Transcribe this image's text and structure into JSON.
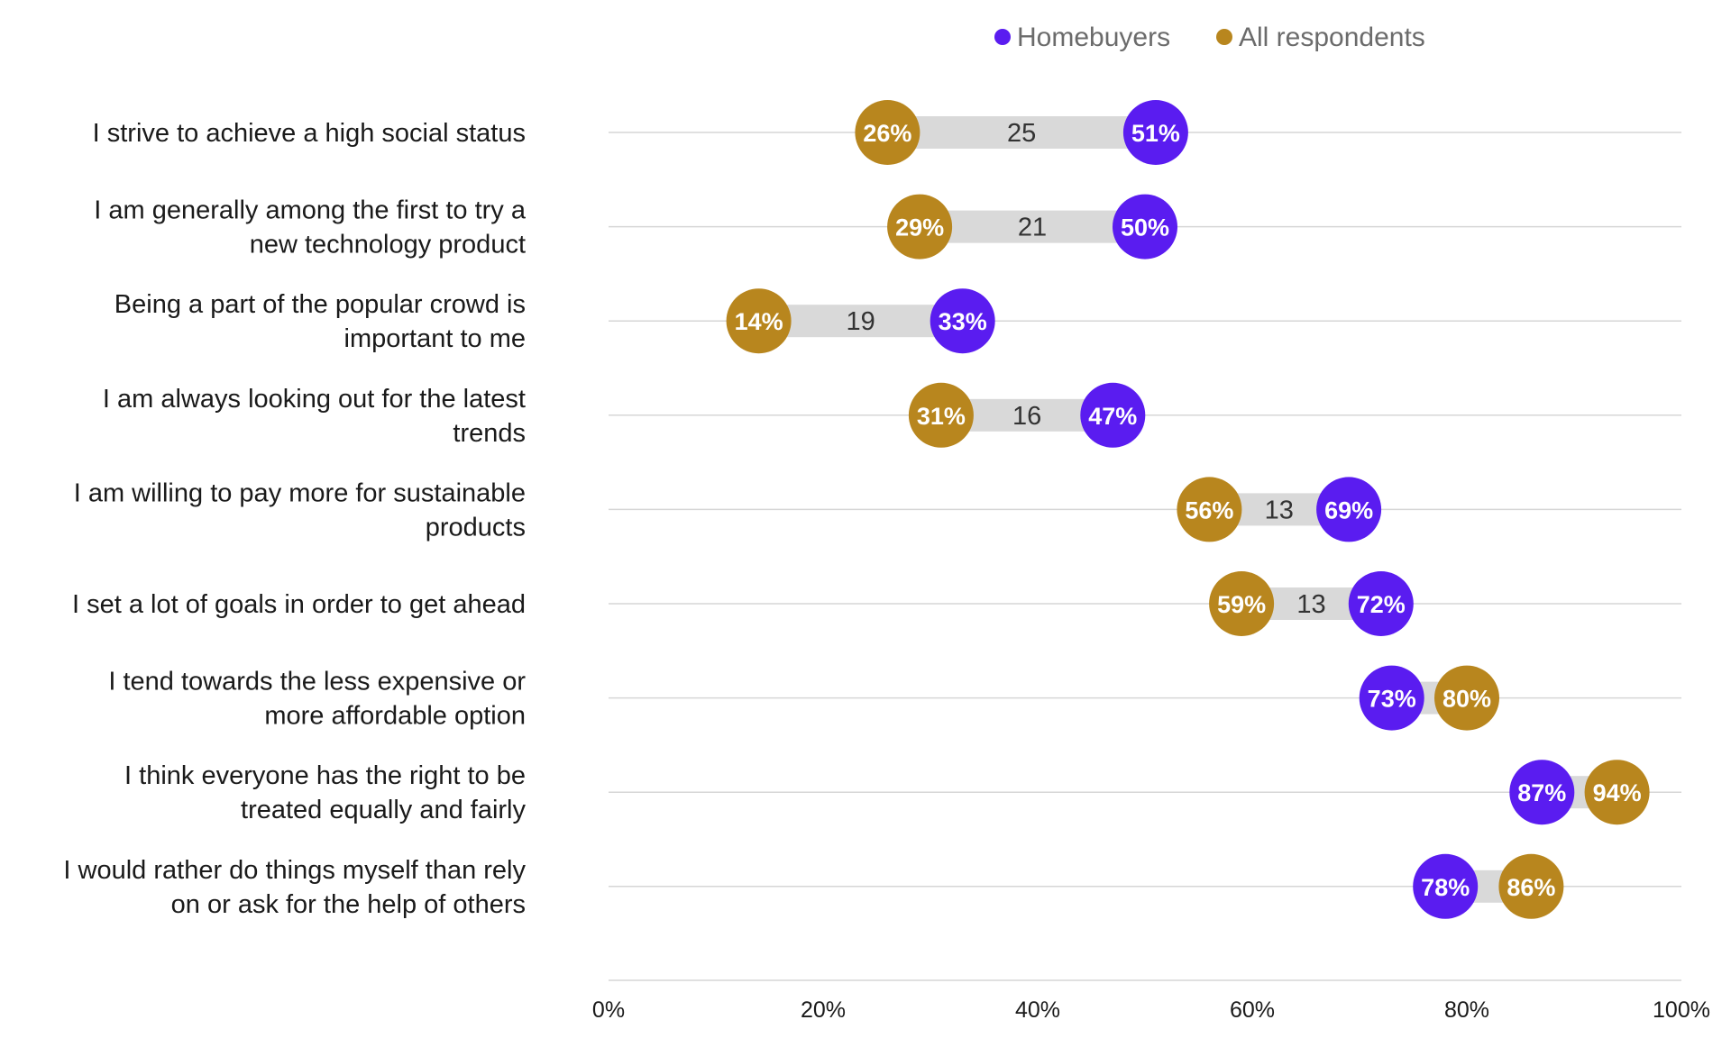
{
  "chart_data": {
    "type": "dumbbell",
    "series": [
      {
        "name": "Homebuyers",
        "color": "#5a1cf0",
        "values": [
          51,
          50,
          33,
          47,
          69,
          72,
          73,
          87,
          78
        ]
      },
      {
        "name": "All respondents",
        "color": "#b8861e",
        "values": [
          26,
          29,
          14,
          31,
          56,
          59,
          80,
          94,
          86
        ]
      }
    ],
    "categories": [
      "I strive to achieve a high social status",
      "I am generally among the first to try a new technology product",
      "Being a part of the popular crowd is important to me",
      "I am always looking out for the latest trends",
      "I am willing to pay more for sustainable products",
      "I set a lot of goals in order to get ahead",
      "I tend towards the less expensive or more affordable option",
      "I think everyone has the right to be treated equally and fairly",
      "I would rather do things myself than rely on or ask for the help of others"
    ],
    "category_lines": [
      [
        "I strive to achieve a high social status"
      ],
      [
        "I am generally among the first to try a",
        "new technology product"
      ],
      [
        "Being a part of the popular crowd is",
        "important to me"
      ],
      [
        "I am always looking out for the latest",
        "trends"
      ],
      [
        "I am willing to pay more for sustainable",
        "products"
      ],
      [
        "I set a lot of goals in order to get ahead"
      ],
      [
        "I tend towards the less expensive or",
        "more affordable option"
      ],
      [
        "I think everyone has the right to be",
        "treated equally and fairly"
      ],
      [
        "I would rather do things myself than rely",
        "on or ask for the help of others"
      ]
    ],
    "gap_labels": [
      "25",
      "21",
      "19",
      "16",
      "13",
      "13",
      "",
      "",
      ""
    ],
    "xlim": [
      0,
      100
    ],
    "xticks": [
      0,
      20,
      40,
      60,
      80,
      100
    ],
    "xtick_labels": [
      "0%",
      "20%",
      "40%",
      "60%",
      "80%",
      "100%"
    ],
    "value_suffix": "%",
    "legend_position": "top",
    "grid": "horizontal",
    "connector_color": "#d9d9d9",
    "gridline_color": "#d6d6d6"
  }
}
